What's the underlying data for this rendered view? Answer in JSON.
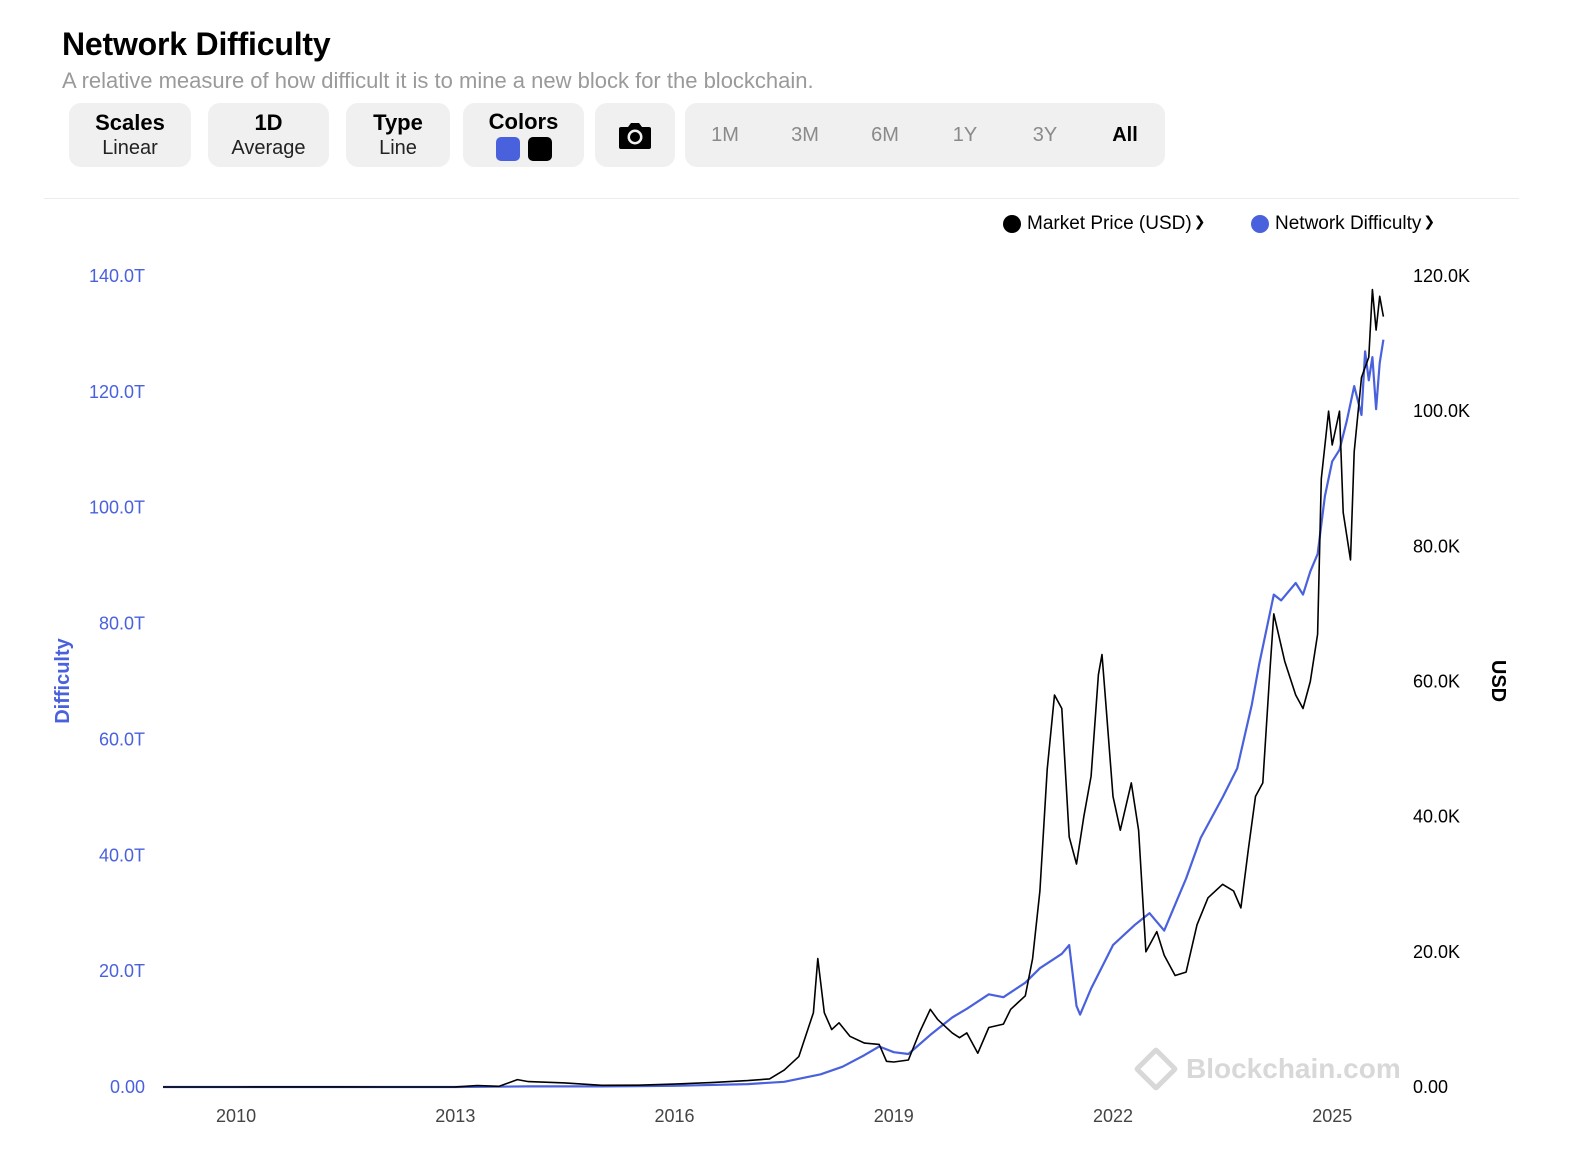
{
  "header": {
    "title": "Network Difficulty",
    "subtitle": "A relative measure of how difficult it is to mine a new block for the blockchain."
  },
  "toolbar": {
    "scales": {
      "label": "Scales",
      "value": "Linear"
    },
    "average": {
      "label": "1D",
      "value": "Average"
    },
    "type": {
      "label": "Type",
      "value": "Line"
    },
    "colors": {
      "label": "Colors",
      "swatches": [
        "#4a61dd",
        "#000000"
      ]
    },
    "camera_icon": "camera-icon",
    "ranges": [
      "1M",
      "3M",
      "6M",
      "1Y",
      "3Y",
      "All"
    ],
    "active_range": "All"
  },
  "legend": [
    {
      "label": "Market Price (USD)",
      "color": "#000000"
    },
    {
      "label": "Network Difficulty",
      "color": "#4a61dd"
    }
  ],
  "watermark": "Blockchain.com",
  "chart_data": {
    "type": "line",
    "xlim": [
      2009.0,
      2025.9
    ],
    "x_ticks": [
      "2010",
      "2013",
      "2016",
      "2019",
      "2022",
      "2025"
    ],
    "y_left": {
      "label": "Difficulty",
      "ticks": [
        "0.00",
        "20.0T",
        "40.0T",
        "60.0T",
        "80.0T",
        "100.0T",
        "120.0T",
        "140.0T"
      ],
      "lim": [
        0,
        140
      ]
    },
    "y_right": {
      "label": "USD",
      "ticks": [
        "0.00",
        "20.0K",
        "40.0K",
        "60.0K",
        "80.0K",
        "100.0K",
        "120.0K"
      ],
      "lim": [
        0,
        120000
      ]
    },
    "grid": false,
    "legend_position": "top-right",
    "series": [
      {
        "name": "Network Difficulty",
        "axis": "left",
        "color": "#4a61dd",
        "points": [
          [
            2009.0,
            0
          ],
          [
            2013.0,
            0
          ],
          [
            2014.0,
            0.1
          ],
          [
            2015.0,
            0.1
          ],
          [
            2016.0,
            0.2
          ],
          [
            2017.0,
            0.5
          ],
          [
            2017.5,
            0.9
          ],
          [
            2018.0,
            2.2
          ],
          [
            2018.3,
            3.5
          ],
          [
            2018.6,
            5.5
          ],
          [
            2018.8,
            7
          ],
          [
            2019.0,
            6
          ],
          [
            2019.2,
            5.7
          ],
          [
            2019.5,
            9
          ],
          [
            2019.8,
            12
          ],
          [
            2020.0,
            13.5
          ],
          [
            2020.3,
            16
          ],
          [
            2020.5,
            15.5
          ],
          [
            2020.8,
            18
          ],
          [
            2021.0,
            20.5
          ],
          [
            2021.3,
            23
          ],
          [
            2021.4,
            24.5
          ],
          [
            2021.5,
            14
          ],
          [
            2021.55,
            12.5
          ],
          [
            2021.7,
            17
          ],
          [
            2021.9,
            22
          ],
          [
            2022.0,
            24.5
          ],
          [
            2022.3,
            28
          ],
          [
            2022.5,
            30
          ],
          [
            2022.7,
            27
          ],
          [
            2022.9,
            33
          ],
          [
            2023.0,
            36
          ],
          [
            2023.2,
            43
          ],
          [
            2023.5,
            50
          ],
          [
            2023.7,
            55
          ],
          [
            2023.9,
            66
          ],
          [
            2024.0,
            73
          ],
          [
            2024.2,
            85
          ],
          [
            2024.3,
            84
          ],
          [
            2024.5,
            87
          ],
          [
            2024.6,
            85
          ],
          [
            2024.7,
            89
          ],
          [
            2024.8,
            92
          ],
          [
            2024.9,
            102
          ],
          [
            2025.0,
            108
          ],
          [
            2025.1,
            110
          ],
          [
            2025.2,
            115
          ],
          [
            2025.3,
            121
          ],
          [
            2025.4,
            116
          ],
          [
            2025.45,
            127
          ],
          [
            2025.5,
            122
          ],
          [
            2025.55,
            126
          ],
          [
            2025.6,
            117
          ],
          [
            2025.65,
            125
          ],
          [
            2025.7,
            129
          ]
        ]
      },
      {
        "name": "Market Price (USD)",
        "axis": "right",
        "color": "#000000",
        "points": [
          [
            2009.0,
            0
          ],
          [
            2010.0,
            0
          ],
          [
            2011.5,
            15
          ],
          [
            2012.0,
            6
          ],
          [
            2013.0,
            15
          ],
          [
            2013.3,
            200
          ],
          [
            2013.6,
            100
          ],
          [
            2013.85,
            1100
          ],
          [
            2014.0,
            800
          ],
          [
            2014.5,
            600
          ],
          [
            2015.0,
            250
          ],
          [
            2015.5,
            270
          ],
          [
            2016.0,
            430
          ],
          [
            2016.5,
            650
          ],
          [
            2017.0,
            950
          ],
          [
            2017.3,
            1200
          ],
          [
            2017.5,
            2500
          ],
          [
            2017.7,
            4500
          ],
          [
            2017.9,
            11000
          ],
          [
            2017.96,
            19000
          ],
          [
            2018.05,
            11000
          ],
          [
            2018.15,
            8500
          ],
          [
            2018.25,
            9500
          ],
          [
            2018.4,
            7500
          ],
          [
            2018.6,
            6500
          ],
          [
            2018.8,
            6300
          ],
          [
            2018.9,
            3800
          ],
          [
            2019.0,
            3700
          ],
          [
            2019.2,
            4000
          ],
          [
            2019.35,
            8000
          ],
          [
            2019.5,
            11500
          ],
          [
            2019.6,
            10000
          ],
          [
            2019.8,
            8000
          ],
          [
            2019.9,
            7300
          ],
          [
            2020.0,
            8000
          ],
          [
            2020.15,
            5000
          ],
          [
            2020.3,
            8800
          ],
          [
            2020.5,
            9300
          ],
          [
            2020.6,
            11500
          ],
          [
            2020.8,
            13500
          ],
          [
            2020.9,
            19000
          ],
          [
            2021.0,
            29000
          ],
          [
            2021.1,
            47000
          ],
          [
            2021.2,
            58000
          ],
          [
            2021.3,
            56000
          ],
          [
            2021.4,
            37000
          ],
          [
            2021.5,
            33000
          ],
          [
            2021.6,
            40000
          ],
          [
            2021.7,
            46000
          ],
          [
            2021.8,
            61000
          ],
          [
            2021.85,
            64000
          ],
          [
            2021.9,
            57000
          ],
          [
            2022.0,
            43000
          ],
          [
            2022.1,
            38000
          ],
          [
            2022.25,
            45000
          ],
          [
            2022.35,
            38000
          ],
          [
            2022.45,
            20000
          ],
          [
            2022.6,
            23000
          ],
          [
            2022.7,
            19500
          ],
          [
            2022.85,
            16500
          ],
          [
            2023.0,
            17000
          ],
          [
            2023.15,
            24000
          ],
          [
            2023.3,
            28000
          ],
          [
            2023.5,
            30000
          ],
          [
            2023.65,
            29000
          ],
          [
            2023.75,
            26500
          ],
          [
            2023.85,
            35000
          ],
          [
            2023.95,
            43000
          ],
          [
            2024.05,
            45000
          ],
          [
            2024.15,
            62000
          ],
          [
            2024.2,
            70000
          ],
          [
            2024.35,
            63000
          ],
          [
            2024.5,
            58000
          ],
          [
            2024.6,
            56000
          ],
          [
            2024.7,
            60000
          ],
          [
            2024.8,
            67000
          ],
          [
            2024.85,
            90000
          ],
          [
            2024.95,
            100000
          ],
          [
            2025.0,
            95000
          ],
          [
            2025.1,
            100000
          ],
          [
            2025.15,
            85000
          ],
          [
            2025.25,
            78000
          ],
          [
            2025.3,
            94000
          ],
          [
            2025.4,
            105000
          ],
          [
            2025.5,
            108000
          ],
          [
            2025.55,
            118000
          ],
          [
            2025.6,
            112000
          ],
          [
            2025.65,
            117000
          ],
          [
            2025.7,
            114000
          ]
        ]
      }
    ]
  }
}
